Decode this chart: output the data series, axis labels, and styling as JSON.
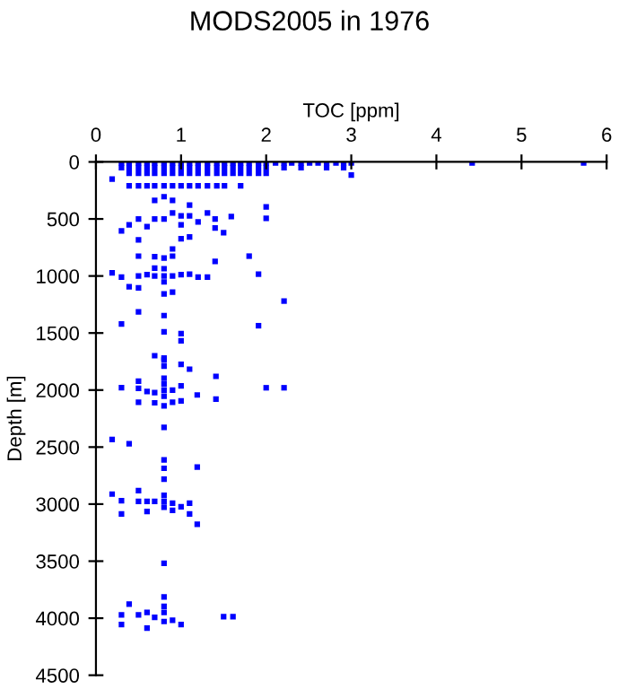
{
  "chart_data": {
    "type": "scatter",
    "title": "MODS2005 in 1976",
    "xlabel": "TOC [ppm]",
    "ylabel": "Depth [m]",
    "xlim": [
      0,
      6
    ],
    "xticks": [
      0,
      1,
      2,
      3,
      4,
      5,
      6
    ],
    "ylim": [
      4500,
      0
    ],
    "yticks": [
      0,
      500,
      1000,
      1500,
      2000,
      2500,
      3000,
      3500,
      4000,
      4500
    ],
    "grid": false,
    "marker": "square",
    "series": [
      {
        "color": "#0000ff",
        "x": [
          0.3,
          0.39,
          0.5,
          0.6,
          0.69,
          0.8,
          0.9,
          1.0,
          1.1,
          1.2,
          1.31,
          1.42,
          1.51,
          1.61,
          1.7,
          1.8,
          1.91,
          2.0,
          2.11,
          2.21,
          2.3,
          2.41,
          2.51,
          2.61,
          2.71,
          2.82,
          2.91,
          3.0,
          4.42,
          5.73,
          0.3,
          0.39,
          0.5,
          0.6,
          0.69,
          0.8,
          0.9,
          1.0,
          1.1,
          1.2,
          1.31,
          1.42,
          1.51,
          1.61,
          1.7,
          1.8,
          1.91,
          2.0,
          2.21,
          2.41,
          2.71,
          2.91,
          0.39,
          0.5,
          0.6,
          0.69,
          0.8,
          0.9,
          1.0,
          1.1,
          1.2,
          1.31,
          1.42,
          1.51,
          1.61,
          1.7,
          1.8,
          1.91,
          2.0,
          3.0,
          0.19,
          0.39,
          0.5,
          0.6,
          0.69,
          0.8,
          0.9,
          1.0,
          1.1,
          1.2,
          1.31,
          1.42,
          1.51,
          1.7,
          0.69,
          0.8,
          0.9,
          1.1,
          2.0,
          1.31,
          1.59,
          2.0,
          0.5,
          0.69,
          0.8,
          0.9,
          1.0,
          1.1,
          1.2,
          0.39,
          0.6,
          1.0,
          1.4,
          1.4,
          1.5,
          0.3,
          0.5,
          1.0,
          1.1,
          0.9,
          0.5,
          0.69,
          0.8,
          0.9,
          1.8,
          1.4,
          0.69,
          0.8,
          0.19,
          0.3,
          0.5,
          0.6,
          0.69,
          0.8,
          0.9,
          1.0,
          1.1,
          1.2,
          1.31,
          1.91,
          0.39,
          0.5,
          0.8,
          0.8,
          0.9,
          2.21,
          0.5,
          0.8,
          0.3,
          1.91,
          0.8,
          1.0,
          1.0,
          0.69,
          0.8,
          0.8,
          0.8,
          1.0,
          1.1,
          1.41,
          0.8,
          0.8,
          0.8,
          0.8,
          0.3,
          0.5,
          0.5,
          0.6,
          0.69,
          0.9,
          1.0,
          1.19,
          1.41,
          1.0,
          0.9,
          0.5,
          0.69,
          0.8,
          2.0,
          2.21,
          0.8,
          0.19,
          0.39,
          0.8,
          0.8,
          1.19,
          0.8,
          0.19,
          0.3,
          0.5,
          0.5,
          0.6,
          0.69,
          0.8,
          0.8,
          0.8,
          0.9,
          0.9,
          1.0,
          1.1,
          1.1,
          0.3,
          0.6,
          1.19,
          0.8,
          0.8,
          0.8,
          0.8,
          0.8,
          0.39,
          0.3,
          0.3,
          0.5,
          0.6,
          0.6,
          0.69,
          0.9,
          1.0,
          1.5,
          1.61
        ],
        "values": [
          10,
          10,
          10,
          10,
          10,
          10,
          10,
          10,
          10,
          10,
          10,
          10,
          10,
          10,
          10,
          10,
          10,
          10,
          10,
          10,
          10,
          10,
          10,
          10,
          10,
          10,
          10,
          10,
          10,
          10,
          50,
          50,
          50,
          50,
          50,
          50,
          50,
          50,
          50,
          50,
          50,
          50,
          50,
          50,
          50,
          50,
          50,
          50,
          50,
          50,
          50,
          50,
          100,
          100,
          100,
          100,
          100,
          100,
          100,
          100,
          100,
          100,
          100,
          100,
          100,
          100,
          100,
          100,
          100,
          115,
          150,
          210,
          210,
          210,
          210,
          210,
          210,
          210,
          210,
          210,
          210,
          210,
          210,
          210,
          337,
          305,
          337,
          379,
          395,
          447,
          479,
          494,
          500,
          500,
          500,
          447,
          473,
          473,
          526,
          552,
          568,
          552,
          500,
          579,
          621,
          605,
          684,
          673,
          658,
          763,
          826,
          831,
          842,
          826,
          826,
          873,
          931,
          936,
          973,
          1010,
          1000,
          989,
          1000,
          1000,
          1000,
          989,
          984,
          1010,
          1010,
          984,
          1094,
          1105,
          1052,
          1157,
          1141,
          1220,
          1315,
          1347,
          1420,
          1436,
          1489,
          1505,
          1568,
          1699,
          1720,
          1738,
          1791,
          1775,
          1817,
          1880,
          1896,
          1948,
          2001,
          2054,
          1980,
          1922,
          1985,
          2012,
          2022,
          2001,
          1964,
          2043,
          2080,
          2096,
          2107,
          2107,
          2112,
          2138,
          1980,
          1980,
          2328,
          2433,
          2470,
          2612,
          2686,
          2676,
          2781,
          2912,
          2970,
          2881,
          2976,
          2976,
          2976,
          2923,
          2976,
          3028,
          2991,
          3054,
          3023,
          2991,
          3086,
          3086,
          3065,
          3176,
          3518,
          3813,
          3897,
          3950,
          4029,
          3876,
          3971,
          4055,
          3971,
          3950,
          4087,
          3992,
          4018,
          4055,
          3987,
          3987
        ]
      }
    ]
  }
}
